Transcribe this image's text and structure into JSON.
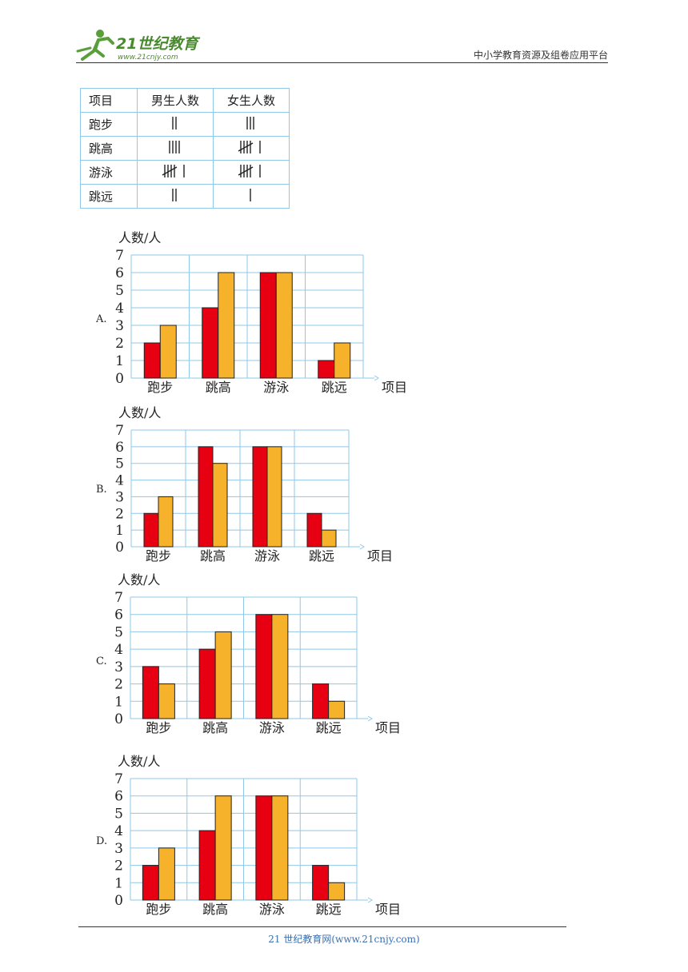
{
  "header": {
    "logo_text": "21世纪教育",
    "logo_sub": "www.21cnjy.com",
    "right_text": "中小学教育资源及组卷应用平台"
  },
  "tally_table": {
    "headers": [
      "项目",
      "男生人数",
      "女生人数"
    ],
    "rows": [
      {
        "item": "跑步",
        "boys": 2,
        "girls": 3
      },
      {
        "item": "跳高",
        "boys": 4,
        "girls": 6
      },
      {
        "item": "游泳",
        "boys": 6,
        "girls": 6
      },
      {
        "item": "跳远",
        "boys": 2,
        "girls": 1
      }
    ]
  },
  "chart_data": [
    {
      "type": "bar",
      "option": "A.",
      "ylabel": "人数/人",
      "xlabel": "项目",
      "categories": [
        "跑步",
        "跳高",
        "游泳",
        "跳远"
      ],
      "ylim": [
        0,
        7
      ],
      "yticks": [
        0,
        1,
        2,
        3,
        4,
        5,
        6,
        7
      ],
      "series": [
        {
          "values": [
            2,
            4,
            6,
            1
          ],
          "color": "#e60012"
        },
        {
          "values": [
            3,
            6,
            6,
            2
          ],
          "color": "#f5b22a"
        }
      ]
    },
    {
      "type": "bar",
      "option": "B.",
      "ylabel": "人数/人",
      "xlabel": "项目",
      "categories": [
        "跑步",
        "跳高",
        "游泳",
        "跳远"
      ],
      "ylim": [
        0,
        7
      ],
      "yticks": [
        0,
        1,
        2,
        3,
        4,
        5,
        6,
        7
      ],
      "series": [
        {
          "values": [
            2,
            6,
            6,
            2
          ],
          "color": "#e60012"
        },
        {
          "values": [
            3,
            5,
            6,
            1
          ],
          "color": "#f5b22a"
        }
      ]
    },
    {
      "type": "bar",
      "option": "C.",
      "ylabel": "人数/人",
      "xlabel": "项目",
      "categories": [
        "跑步",
        "跳高",
        "游泳",
        "跳远"
      ],
      "ylim": [
        0,
        7
      ],
      "yticks": [
        0,
        1,
        2,
        3,
        4,
        5,
        6,
        7
      ],
      "series": [
        {
          "values": [
            3,
            4,
            6,
            2
          ],
          "color": "#e60012"
        },
        {
          "values": [
            2,
            5,
            6,
            1
          ],
          "color": "#f5b22a"
        }
      ]
    },
    {
      "type": "bar",
      "option": "D.",
      "ylabel": "人数/人",
      "xlabel": "项目",
      "categories": [
        "跑步",
        "跳高",
        "游泳",
        "跳远"
      ],
      "ylim": [
        0,
        7
      ],
      "yticks": [
        0,
        1,
        2,
        3,
        4,
        5,
        6,
        7
      ],
      "series": [
        {
          "values": [
            2,
            4,
            6,
            2
          ],
          "color": "#e60012"
        },
        {
          "values": [
            3,
            6,
            6,
            1
          ],
          "color": "#f5b22a"
        }
      ]
    }
  ],
  "footer": {
    "text": "21 世纪教育网(www.21cnjy.com)"
  }
}
